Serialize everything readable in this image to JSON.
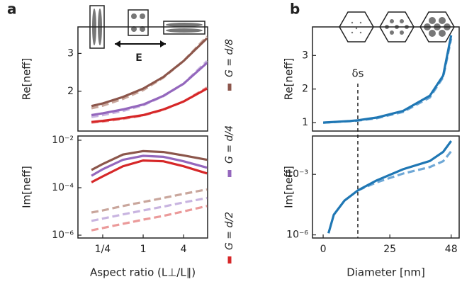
{
  "chart_data": [
    {
      "type": "line",
      "panel": "a",
      "ylabel": "Re[neff]",
      "annotation": "E",
      "log_x": true,
      "xlim": [
        0.107,
        9.1
      ],
      "ylim": [
        0.95,
        3.7
      ],
      "yticks": [
        2,
        3
      ],
      "x": [
        0.17,
        0.25,
        0.5,
        1,
        2,
        4,
        8.9
      ],
      "series": [
        {
          "name": "G = d/8",
          "color": "#8c564b",
          "dashed": false,
          "values": [
            1.61,
            1.68,
            1.85,
            2.07,
            2.38,
            2.8,
            3.4
          ]
        },
        {
          "color": "#c9a69c",
          "dashed": true,
          "values": [
            1.55,
            1.62,
            1.8,
            2.03,
            2.36,
            2.8,
            3.45
          ]
        },
        {
          "name": "G = d/4",
          "color": "#9467bd",
          "dashed": false,
          "values": [
            1.37,
            1.42,
            1.52,
            1.65,
            1.88,
            2.2,
            2.75
          ]
        },
        {
          "color": "#c8b4e0",
          "dashed": true,
          "values": [
            1.32,
            1.37,
            1.48,
            1.63,
            1.87,
            2.2,
            2.8
          ]
        },
        {
          "name": "G = d/2",
          "color": "#d62728",
          "dashed": false,
          "values": [
            1.19,
            1.22,
            1.29,
            1.37,
            1.52,
            1.73,
            2.07
          ]
        },
        {
          "color": "#eb9a9a",
          "dashed": true,
          "values": [
            1.17,
            1.2,
            1.27,
            1.36,
            1.51,
            1.73,
            2.1
          ]
        }
      ]
    },
    {
      "type": "line",
      "ylabel": "Im[neff]",
      "xlabel": "Aspect ratio (L⊥/L∥)",
      "log_x": true,
      "log_y": true,
      "xlim": [
        0.107,
        9.1
      ],
      "ylim": [
        7.6e-07,
        0.0151
      ],
      "xticks": [
        {
          "value": 0.25,
          "label": "1/4"
        },
        1,
        4
      ],
      "yticks": [
        {
          "value": 1e-06,
          "label": "10⁻⁶"
        },
        {
          "value": 0.0001,
          "label": "10⁻⁴"
        },
        {
          "value": 0.01,
          "label": "10⁻²"
        }
      ],
      "x": [
        0.17,
        0.25,
        0.5,
        1,
        2,
        4,
        8.9
      ],
      "series": [
        {
          "color": "#8c564b",
          "dashed": false,
          "values": [
            0.00056,
            0.001,
            0.0025,
            0.0035,
            0.0032,
            0.0023,
            0.0015
          ]
        },
        {
          "color": "#9467bd",
          "dashed": false,
          "values": [
            0.00032,
            0.0006,
            0.0015,
            0.0022,
            0.002,
            0.0013,
            0.0007
          ]
        },
        {
          "color": "#d62728",
          "dashed": false,
          "values": [
            0.00017,
            0.0003,
            0.0008,
            0.0014,
            0.0013,
            0.0008,
            0.0004
          ]
        },
        {
          "color": "#c9a69c",
          "dashed": true,
          "values": [
            9e-06,
            1.1e-05,
            1.7e-05,
            2.5e-05,
            3.7e-05,
            5.5e-05,
            8.5e-05
          ]
        },
        {
          "color": "#c8b4e0",
          "dashed": true,
          "values": [
            4e-06,
            5e-06,
            7.5e-06,
            1.1e-05,
            1.6e-05,
            2.4e-05,
            3.7e-05
          ]
        },
        {
          "color": "#eb9a9a",
          "dashed": true,
          "values": [
            1.6e-06,
            2e-06,
            3e-06,
            4.5e-06,
            6.5e-06,
            1e-05,
            1.7e-05
          ]
        }
      ]
    },
    {
      "type": "line",
      "panel": "b",
      "ylabel": "Re[neff]",
      "annotation": {
        "text": "δs",
        "x": 13
      },
      "xlim": [
        -4,
        51
      ],
      "ylim": [
        0.75,
        3.85
      ],
      "yticks": [
        1,
        2,
        3
      ],
      "x": [
        0,
        10,
        13,
        20,
        30,
        40,
        45,
        48
      ],
      "series": [
        {
          "color": "#1f77b4",
          "dashed": false,
          "values": [
            1.0,
            1.05,
            1.07,
            1.15,
            1.35,
            1.8,
            2.4,
            3.6
          ]
        },
        {
          "color": "#6fa8d6",
          "dashed": true,
          "values": [
            1.0,
            1.04,
            1.06,
            1.13,
            1.32,
            1.75,
            2.35,
            3.5
          ]
        }
      ]
    },
    {
      "type": "line",
      "ylabel": "Im[neff]",
      "xlabel": "Diameter [nm]",
      "log_y": true,
      "xlim": [
        -4,
        51
      ],
      "ylim": [
        7e-07,
        0.08
      ],
      "xticks": [
        0,
        25,
        48
      ],
      "yticks": [
        {
          "value": 1e-06,
          "label": "10⁻⁶"
        },
        {
          "value": 0.001,
          "label": "10⁻³"
        }
      ],
      "x": [
        2,
        4,
        8,
        13,
        20,
        30,
        40,
        45,
        48
      ],
      "series": [
        {
          "color": "#1f77b4",
          "dashed": false,
          "values": [
            1.2e-06,
            1e-05,
            5e-05,
            0.00016,
            0.0005,
            0.0018,
            0.0046,
            0.013,
            0.045
          ]
        },
        {
          "color": "#6fa8d6",
          "dashed": true,
          "values": [
            null,
            null,
            null,
            0.00016,
            0.0004,
            0.0011,
            0.0023,
            0.0045,
            0.014
          ]
        }
      ]
    }
  ]
}
